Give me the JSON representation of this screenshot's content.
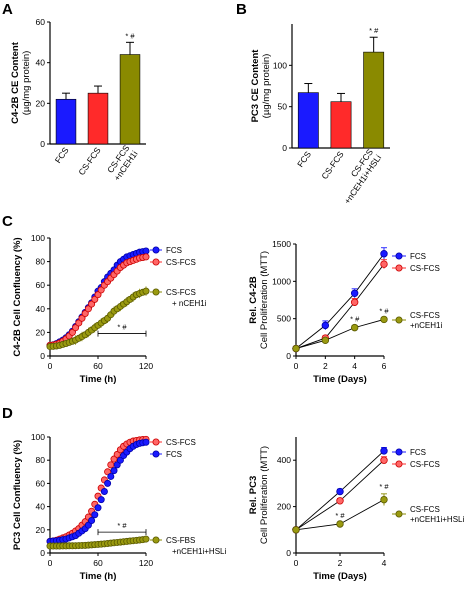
{
  "figure": {
    "panel_letters": [
      "A",
      "B",
      "C",
      "D"
    ],
    "colors": {
      "FCS": "#1a1aff",
      "CS-FCS": "#ff2a2a",
      "treated": "#8a8a00",
      "treated_marker": "#9a9a10",
      "red_marker": "#ff6666",
      "axis": "#000000"
    }
  },
  "chart_data": [
    {
      "id": "A",
      "type": "bar",
      "ylabel": [
        "C4-2B CE Content",
        "(µg/mg protein)"
      ],
      "ylim": [
        0,
        60
      ],
      "yticks": [
        0,
        20,
        40,
        60
      ],
      "categories": [
        "FCS",
        "CS-FCS",
        "CS-FCS\n+nCEH1i"
      ],
      "values": [
        22,
        25,
        44
      ],
      "errors": [
        3,
        3.5,
        6
      ],
      "colors": [
        "#1a1aff",
        "#ff2a2a",
        "#8a8a00"
      ],
      "annotations": [
        {
          "category_index": 2,
          "text": "* #"
        }
      ]
    },
    {
      "id": "B",
      "type": "bar",
      "ylabel": [
        "PC3 CE Content",
        "(µg/mg protein)"
      ],
      "ylim": [
        0,
        150
      ],
      "yticks": [
        0,
        50,
        100
      ],
      "categories": [
        "FCS",
        "CS-FCS",
        "CS-FCS\n+nCEH1i+HSLi"
      ],
      "values": [
        67,
        56,
        116
      ],
      "errors": [
        11,
        10,
        18
      ],
      "colors": [
        "#1a1aff",
        "#ff2a2a",
        "#8a8a00"
      ],
      "annotations": [
        {
          "category_index": 2,
          "text": "* #"
        }
      ]
    },
    {
      "id": "C-left",
      "type": "scatter",
      "xlabel": "Time (h)",
      "ylabel": "C4-2B Cell Confluency (%)",
      "xlim": [
        0,
        120
      ],
      "xticks": [
        0,
        60,
        120
      ],
      "ylim": [
        0,
        100
      ],
      "yticks": [
        0,
        20,
        40,
        60,
        80,
        100
      ],
      "series": [
        {
          "name": "FCS",
          "color": "#1a1aff",
          "marker_fill": "#1a1aff",
          "x": [
            0,
            4,
            8,
            12,
            16,
            20,
            24,
            28,
            32,
            36,
            40,
            44,
            48,
            52,
            56,
            60,
            64,
            68,
            72,
            76,
            80,
            84,
            88,
            92,
            96,
            100,
            104,
            108,
            112,
            116,
            120
          ],
          "y": [
            9,
            9.5,
            10.5,
            12,
            13.5,
            15.5,
            18,
            21,
            25,
            29,
            33,
            37,
            41,
            45,
            50,
            55,
            58,
            63,
            67,
            70,
            73,
            77,
            80,
            82,
            84,
            85,
            86,
            87,
            88,
            88.5,
            89
          ]
        },
        {
          "name": "CS-FCS",
          "color": "#ff2a2a",
          "marker_fill": "#ff6666",
          "x": [
            0,
            4,
            8,
            12,
            16,
            20,
            24,
            28,
            32,
            36,
            40,
            44,
            48,
            52,
            56,
            60,
            64,
            68,
            72,
            76,
            80,
            84,
            88,
            92,
            96,
            100,
            104,
            108,
            112,
            116,
            120
          ],
          "y": [
            9,
            9.3,
            10,
            11,
            12.5,
            14.5,
            17,
            20,
            24,
            28,
            32,
            36,
            40,
            44,
            48,
            52,
            56,
            60,
            63,
            66,
            69,
            72,
            75,
            77,
            79,
            80,
            81,
            82,
            83,
            83.5,
            84
          ]
        },
        {
          "name": "CS-FCS\n+ nCEH1i",
          "color": "#8a8a00",
          "marker_fill": "#9a9a10",
          "x": [
            0,
            4,
            8,
            12,
            16,
            20,
            24,
            28,
            32,
            36,
            40,
            44,
            48,
            52,
            56,
            60,
            64,
            68,
            72,
            76,
            80,
            84,
            88,
            92,
            96,
            100,
            104,
            108,
            112,
            116,
            120
          ],
          "y": [
            8,
            8.2,
            8.5,
            9,
            9.8,
            10.6,
            11.5,
            12.5,
            13.5,
            15,
            16.5,
            18,
            20,
            22,
            24,
            26,
            28,
            30,
            32,
            35,
            38,
            40,
            42,
            44,
            46,
            48,
            50,
            52,
            53,
            54,
            55
          ],
          "error": 4
        }
      ],
      "bracket": {
        "x_start": 60,
        "x_end": 120,
        "y": 19,
        "text": "* #"
      }
    },
    {
      "id": "C-right",
      "type": "line",
      "xlabel": "Time (Days)",
      "ylabel": [
        "Rel. C4-2B",
        "Cell Proliferation (MTT)"
      ],
      "xlim": [
        0,
        6
      ],
      "xticks": [
        0,
        2,
        4,
        6
      ],
      "ylim": [
        0,
        1500
      ],
      "yticks": [
        0,
        500,
        1000,
        1500
      ],
      "series": [
        {
          "name": "FCS",
          "color": "#1a1aff",
          "marker_fill": "#1a1aff",
          "x": [
            0,
            2,
            4,
            6
          ],
          "y": [
            100,
            410,
            840,
            1370
          ],
          "errors": [
            0,
            60,
            60,
            80
          ]
        },
        {
          "name": "CS-FCS",
          "color": "#ff2a2a",
          "marker_fill": "#ff6666",
          "x": [
            0,
            2,
            4,
            6
          ],
          "y": [
            100,
            240,
            720,
            1230
          ],
          "errors": [
            0,
            30,
            50,
            60
          ]
        },
        {
          "name": "CS-FCS\n+nCEH1i",
          "color": "#8a8a00",
          "marker_fill": "#9a9a10",
          "x": [
            0,
            2,
            4,
            6
          ],
          "y": [
            100,
            210,
            380,
            490
          ],
          "errors": [
            0,
            20,
            30,
            25
          ]
        }
      ],
      "annotations": [
        {
          "x": 4,
          "y": 460,
          "text": "* #"
        },
        {
          "x": 6,
          "y": 570,
          "text": "* #"
        }
      ]
    },
    {
      "id": "D-left",
      "type": "scatter",
      "xlabel": "Time (h)",
      "ylabel": "PC3 Cell Confluency (%)",
      "xlim": [
        0,
        120
      ],
      "xticks": [
        0,
        60,
        120
      ],
      "ylim": [
        0,
        100
      ],
      "yticks": [
        0,
        20,
        40,
        60,
        80,
        100
      ],
      "series": [
        {
          "name": "CS-FCS",
          "color": "#ff2a2a",
          "marker_fill": "#ff6666",
          "x": [
            0,
            4,
            8,
            12,
            16,
            20,
            24,
            28,
            32,
            36,
            40,
            44,
            48,
            52,
            56,
            60,
            64,
            68,
            72,
            76,
            80,
            84,
            88,
            92,
            96,
            100,
            104,
            108,
            112,
            116,
            120
          ],
          "y": [
            10,
            10.5,
            11,
            12,
            13,
            14,
            15.5,
            17,
            19,
            21,
            24,
            27,
            31,
            36,
            42,
            49,
            56,
            63,
            70,
            76,
            81,
            85,
            89,
            92,
            94,
            95.5,
            96.5,
            97,
            97.5,
            97.8,
            98
          ]
        },
        {
          "name": "FCS",
          "color": "#1a1aff",
          "marker_fill": "#1a1aff",
          "x": [
            0,
            4,
            8,
            12,
            16,
            20,
            24,
            28,
            32,
            36,
            40,
            44,
            48,
            52,
            56,
            60,
            64,
            68,
            72,
            76,
            80,
            84,
            88,
            92,
            96,
            100,
            104,
            108,
            112,
            116,
            120
          ],
          "y": [
            10,
            10.3,
            10.6,
            11,
            11.5,
            12,
            13,
            14,
            15,
            17,
            19,
            21,
            24,
            28,
            33,
            39,
            46,
            53,
            60,
            66,
            71,
            76,
            80,
            84,
            87,
            90,
            92,
            93.5,
            94.5,
            95,
            95.5
          ]
        },
        {
          "name": "CS-FBS\n+nCEH1i+HSLi",
          "color": "#8a8a00",
          "marker_fill": "#9a9a10",
          "x": [
            0,
            4,
            8,
            12,
            16,
            20,
            24,
            28,
            32,
            36,
            40,
            44,
            48,
            52,
            56,
            60,
            64,
            68,
            72,
            76,
            80,
            84,
            88,
            92,
            96,
            100,
            104,
            108,
            112,
            116,
            120
          ],
          "y": [
            6,
            6,
            6,
            6,
            6.1,
            6.1,
            6.2,
            6.2,
            6.3,
            6.4,
            6.5,
            6.6,
            6.8,
            7,
            7.2,
            7.4,
            7.6,
            7.9,
            8.2,
            8.5,
            8.8,
            9.1,
            9.4,
            9.7,
            10,
            10.3,
            10.6,
            10.9,
            11.2,
            11.5,
            12
          ],
          "error": 2
        }
      ],
      "bracket": {
        "x_start": 60,
        "x_end": 120,
        "y": 18,
        "text": "* #"
      }
    },
    {
      "id": "D-right",
      "type": "line",
      "xlabel": "Time (Days)",
      "ylabel": [
        "Rel. PC3",
        "Cell Proliferation (MTT)"
      ],
      "xlim": [
        0,
        4
      ],
      "xticks": [
        0,
        2,
        4
      ],
      "ylim": [
        0,
        500
      ],
      "yticks": [
        0,
        200,
        400
      ],
      "series": [
        {
          "name": "FCS",
          "color": "#1a1aff",
          "marker_fill": "#1a1aff",
          "x": [
            0,
            2,
            4
          ],
          "y": [
            100,
            265,
            440
          ],
          "errors": [
            0,
            10,
            15
          ]
        },
        {
          "name": "CS-FCS",
          "color": "#ff2a2a",
          "marker_fill": "#ff6666",
          "x": [
            0,
            2,
            4
          ],
          "y": [
            100,
            225,
            400
          ],
          "errors": [
            0,
            10,
            15
          ]
        },
        {
          "name": "CS-FCS\n+nCEH1i+HSLi",
          "color": "#8a8a00",
          "marker_fill": "#9a9a10",
          "x": [
            0,
            2,
            4
          ],
          "y": [
            100,
            125,
            230
          ],
          "errors": [
            0,
            8,
            25
          ]
        }
      ],
      "annotations": [
        {
          "x": 2,
          "y": 150,
          "text": "* #"
        },
        {
          "x": 4,
          "y": 275,
          "text": "* #"
        }
      ]
    }
  ]
}
